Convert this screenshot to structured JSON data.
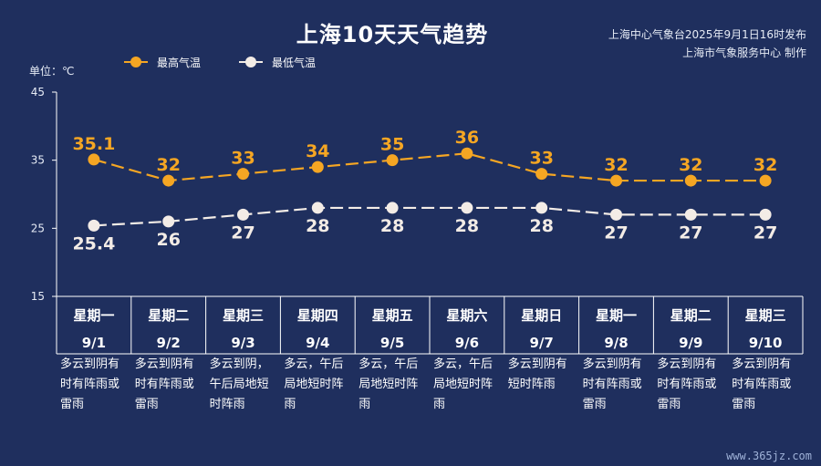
{
  "title": "上海10天天气趋势",
  "publisher": {
    "line1": "上海中心气象台2025年9月1日16时发布",
    "line2": "上海市气象服务中心 制作"
  },
  "unit_label": "单位：℃",
  "watermark": "www.365jz.com",
  "days": [
    {
      "weekday": "星期一",
      "date": "9/1",
      "desc": "多云到阴有时有阵雨或雷雨"
    },
    {
      "weekday": "星期二",
      "date": "9/2",
      "desc": "多云到阴有时有阵雨或雷雨"
    },
    {
      "weekday": "星期三",
      "date": "9/3",
      "desc": "多云到阴，午后局地短时阵雨"
    },
    {
      "weekday": "星期四",
      "date": "9/4",
      "desc": "多云，午后局地短时阵雨"
    },
    {
      "weekday": "星期五",
      "date": "9/5",
      "desc": "多云，午后局地短时阵雨"
    },
    {
      "weekday": "星期六",
      "date": "9/6",
      "desc": "多云，午后局地短时阵雨"
    },
    {
      "weekday": "星期日",
      "date": "9/7",
      "desc": "多云到阴有短时阵雨"
    },
    {
      "weekday": "星期一",
      "date": "9/8",
      "desc": "多云到阴有时有阵雨或雷雨"
    },
    {
      "weekday": "星期二",
      "date": "9/9",
      "desc": "多云到阴有时有阵雨或雷雨"
    },
    {
      "weekday": "星期三",
      "date": "9/10",
      "desc": "多云到阴有时有阵雨或雷雨"
    }
  ],
  "chart_data": {
    "type": "line",
    "title": "上海10天天气趋势",
    "ylabel": "单位：℃",
    "ylim": [
      15,
      45
    ],
    "yticks": [
      15,
      25,
      35,
      45
    ],
    "categories": [
      "9/1",
      "9/2",
      "9/3",
      "9/4",
      "9/5",
      "9/6",
      "9/7",
      "9/8",
      "9/9",
      "9/10"
    ],
    "legend_position": "top-left",
    "grid": false,
    "series": [
      {
        "name": "最高气温",
        "color": "#f5a623",
        "labels": [
          "35.1",
          "32",
          "33",
          "34",
          "35",
          "36",
          "33",
          "32",
          "32",
          "32"
        ],
        "values": [
          35.1,
          32,
          33,
          34,
          35,
          36,
          33,
          32,
          32,
          32
        ]
      },
      {
        "name": "最低气温",
        "color": "#f3ece6",
        "labels": [
          "25.4",
          "26",
          "27",
          "28",
          "28",
          "28",
          "28",
          "27",
          "27",
          "27"
        ],
        "values": [
          25.4,
          26,
          27,
          28,
          28,
          28,
          28,
          27,
          27,
          27
        ]
      }
    ]
  }
}
